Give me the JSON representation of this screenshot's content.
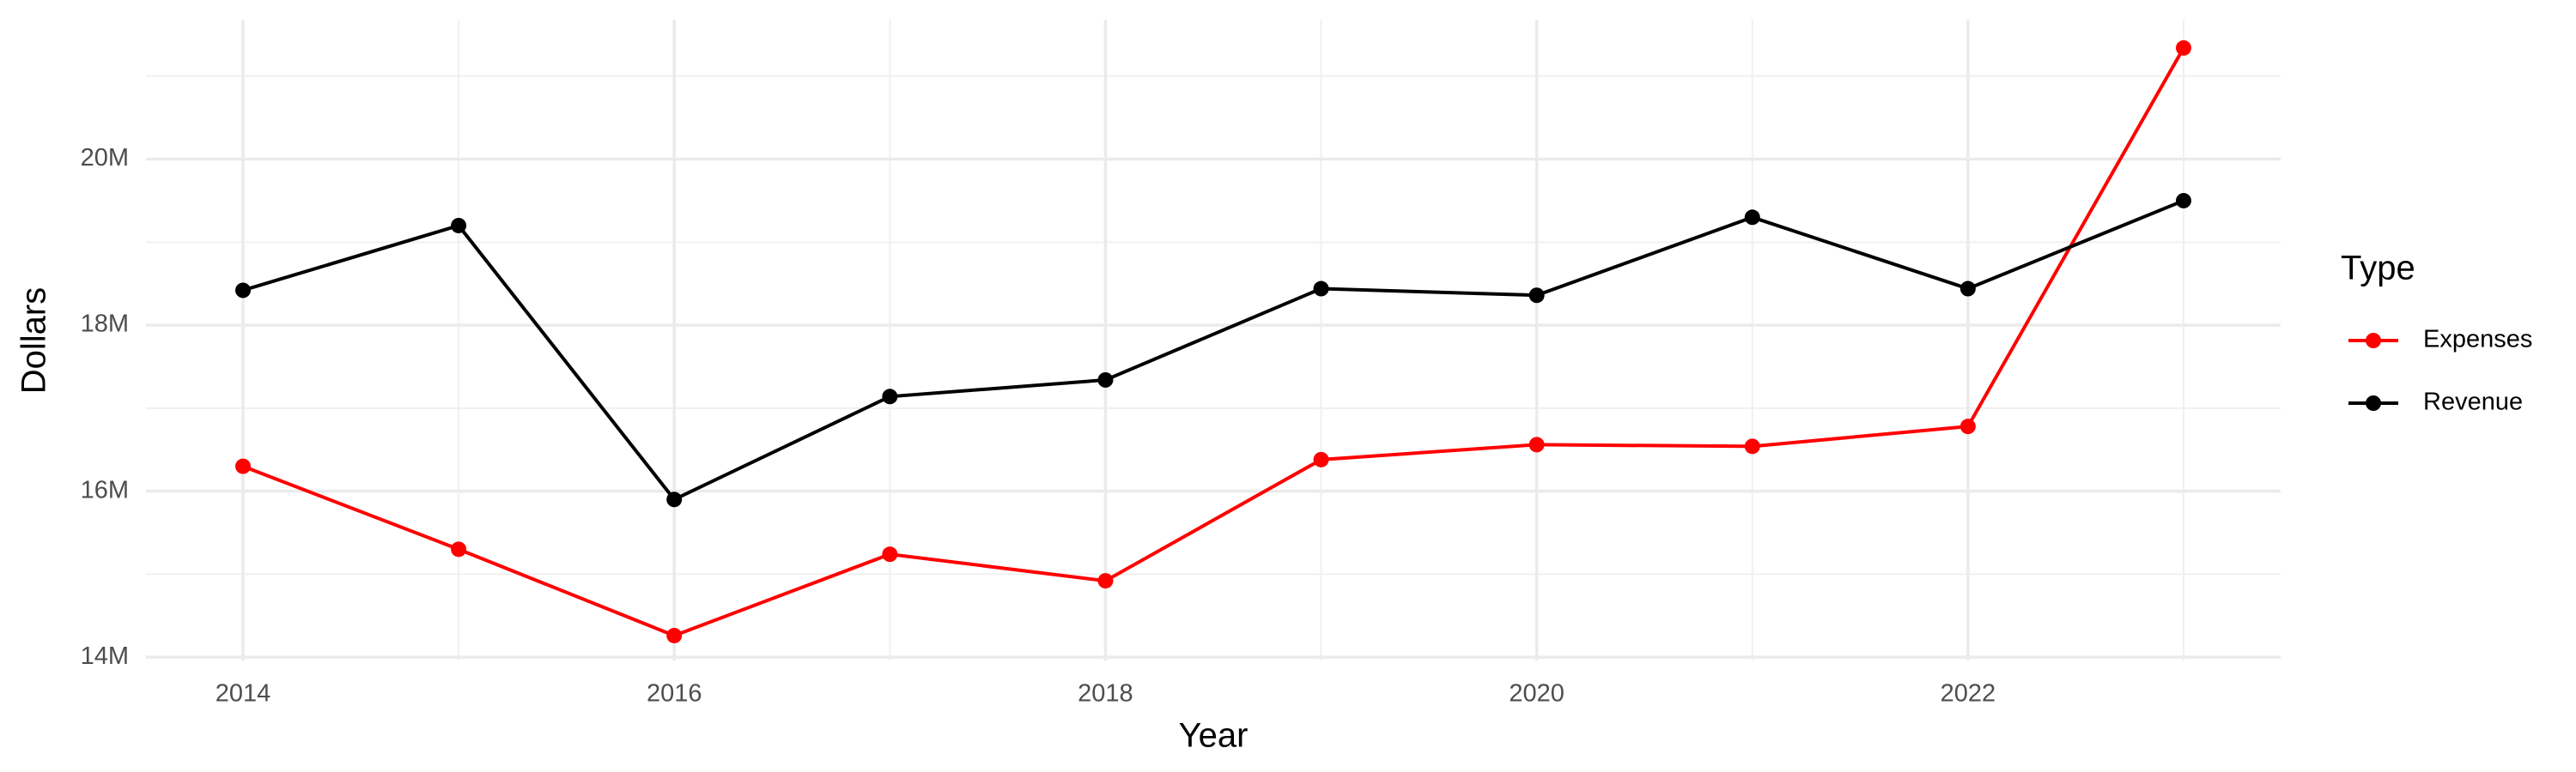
{
  "chart_data": {
    "type": "line",
    "x_label": "Year",
    "y_label": "Dollars",
    "x": [
      2014,
      2015,
      2016,
      2017,
      2018,
      2019,
      2020,
      2021,
      2022,
      2023
    ],
    "series": [
      {
        "name": "Expenses",
        "color": "#ff0000",
        "values": [
          16300000,
          15300000,
          14260000,
          15240000,
          14920000,
          16380000,
          16560000,
          16540000,
          16780000,
          21340000
        ]
      },
      {
        "name": "Revenue",
        "color": "#000000",
        "values": [
          18420000,
          19200000,
          15900000,
          17140000,
          17340000,
          18440000,
          18360000,
          19300000,
          18440000,
          19500000
        ]
      }
    ],
    "xlim": [
      2013.55,
      2023.45
    ],
    "xticks": [
      2014,
      2016,
      2018,
      2020,
      2022
    ],
    "ylim": [
      13960000,
      21680000
    ],
    "yticks": [
      {
        "value": 14000000,
        "label": "14M"
      },
      {
        "value": 16000000,
        "label": "16M"
      },
      {
        "value": 18000000,
        "label": "18M"
      },
      {
        "value": 20000000,
        "label": "20M"
      }
    ],
    "grid": true,
    "legend_title": "Type",
    "legend_position": "right"
  }
}
